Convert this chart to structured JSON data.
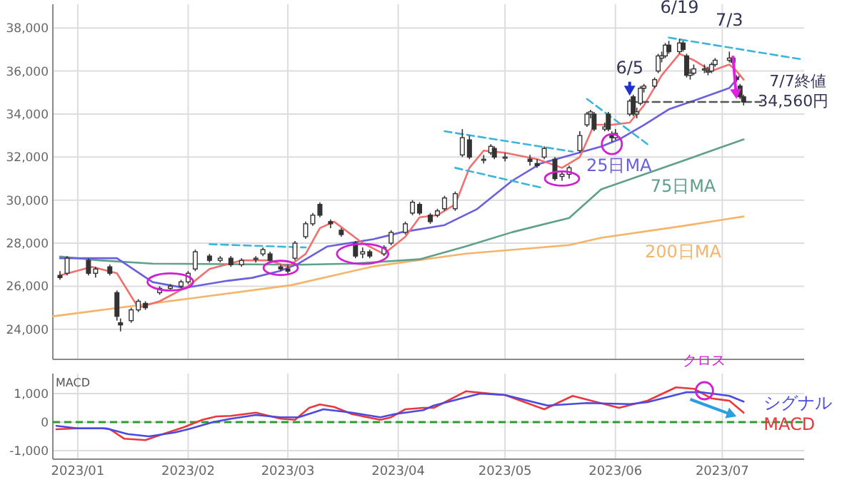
{
  "chart_data": [
    {
      "type": "candlestick",
      "tick_labels": "y",
      "grid": true,
      "xlim": [
        "2022-12-25",
        "2023-07-24"
      ],
      "xticks": [
        {
          "value": "2023-01-01",
          "label": null
        },
        {
          "value": "2023-02-01",
          "label": null
        },
        {
          "value": "2023-03-01",
          "label": null
        },
        {
          "value": "2023-04-01",
          "label": null
        },
        {
          "value": "2023-05-01",
          "label": null
        },
        {
          "value": "2023-06-01",
          "label": null
        },
        {
          "value": "2023-07-01",
          "label": null
        }
      ],
      "ylim": [
        22600,
        39100
      ],
      "yticks": [
        {
          "value": 24000,
          "label": "24,000"
        },
        {
          "value": 26000,
          "label": "26,000"
        },
        {
          "value": 28000,
          "label": "28,000"
        },
        {
          "value": 30000,
          "label": "30,000"
        },
        {
          "value": 32000,
          "label": "32,000"
        },
        {
          "value": 34000,
          "label": "34,000"
        },
        {
          "value": 36000,
          "label": "36,000"
        },
        {
          "value": 38000,
          "label": "38,000"
        }
      ],
      "x": [
        "2022-12-27",
        "2022-12-29",
        "2023-01-04",
        "2023-01-06",
        "2023-01-10",
        "2023-01-12",
        "2023-01-13",
        "2023-01-16",
        "2023-01-18",
        "2023-01-20",
        "2023-01-24",
        "2023-01-27",
        "2023-01-30",
        "2023-02-01",
        "2023-02-03",
        "2023-02-07",
        "2023-02-10",
        "2023-02-13",
        "2023-02-16",
        "2023-02-20",
        "2023-02-22",
        "2023-02-24",
        "2023-02-27",
        "2023-03-01",
        "2023-03-03",
        "2023-03-06",
        "2023-03-08",
        "2023-03-10",
        "2023-03-13",
        "2023-03-16",
        "2023-03-20",
        "2023-03-22",
        "2023-03-24",
        "2023-03-28",
        "2023-03-30",
        "2023-04-03",
        "2023-04-05",
        "2023-04-07",
        "2023-04-10",
        "2023-04-12",
        "2023-04-14",
        "2023-04-17",
        "2023-04-19",
        "2023-04-21",
        "2023-04-25",
        "2023-04-27",
        "2023-04-28",
        "2023-05-01",
        "2023-05-08",
        "2023-05-10",
        "2023-05-12",
        "2023-05-15",
        "2023-05-17",
        "2023-05-19",
        "2023-05-22",
        "2023-05-24",
        "2023-05-25",
        "2023-05-26",
        "2023-05-29",
        "2023-05-30",
        "2023-05-31",
        "2023-06-01",
        "2023-06-05",
        "2023-06-06",
        "2023-06-07",
        "2023-06-08",
        "2023-06-09",
        "2023-06-12",
        "2023-06-13",
        "2023-06-14",
        "2023-06-15",
        "2023-06-16",
        "2023-06-19",
        "2023-06-20",
        "2023-06-21",
        "2023-06-22",
        "2023-06-23",
        "2023-06-26",
        "2023-06-27",
        "2023-06-28",
        "2023-06-29",
        "2023-07-03",
        "2023-07-04",
        "2023-07-05",
        "2023-07-06",
        "2023-07-07"
      ],
      "ohlc": [
        [
          26500,
          26700,
          26300,
          26400
        ],
        [
          26600,
          27400,
          26500,
          27300
        ],
        [
          27200,
          27300,
          26500,
          26600
        ],
        [
          26600,
          26900,
          26400,
          26800
        ],
        [
          26900,
          27000,
          26500,
          26600
        ],
        [
          25700,
          25800,
          24400,
          24600
        ],
        [
          24300,
          24500,
          23900,
          24200
        ],
        [
          24400,
          25000,
          24300,
          24900
        ],
        [
          24900,
          25400,
          24800,
          25300
        ],
        [
          25200,
          25300,
          24900,
          25000
        ],
        [
          25700,
          26000,
          25600,
          25900
        ],
        [
          25900,
          26100,
          25800,
          26000
        ],
        [
          26000,
          26300,
          25900,
          26200
        ],
        [
          26200,
          26700,
          26100,
          26600
        ],
        [
          26800,
          27700,
          26700,
          27600
        ],
        [
          27400,
          27500,
          27100,
          27200
        ],
        [
          27200,
          27400,
          27100,
          27300
        ],
        [
          27300,
          27400,
          26900,
          27000
        ],
        [
          27000,
          27300,
          26900,
          27200
        ],
        [
          27300,
          27400,
          27100,
          27300
        ],
        [
          27500,
          27800,
          27400,
          27700
        ],
        [
          27500,
          27600,
          27100,
          27200
        ],
        [
          26900,
          27000,
          26700,
          26800
        ],
        [
          26800,
          27000,
          26600,
          26700
        ],
        [
          27300,
          28100,
          27200,
          28000
        ],
        [
          28300,
          29000,
          28200,
          28900
        ],
        [
          28900,
          29400,
          28800,
          29300
        ],
        [
          29800,
          29900,
          29200,
          29300
        ],
        [
          29000,
          29100,
          28700,
          28900
        ],
        [
          28600,
          28700,
          28300,
          28400
        ],
        [
          28000,
          28100,
          27300,
          27400
        ],
        [
          27500,
          27800,
          27300,
          27600
        ],
        [
          27600,
          27700,
          27300,
          27400
        ],
        [
          27500,
          27900,
          27400,
          27800
        ],
        [
          28000,
          28600,
          27900,
          28500
        ],
        [
          28500,
          29000,
          28400,
          28900
        ],
        [
          29400,
          30000,
          29300,
          29900
        ],
        [
          29800,
          29900,
          29300,
          29400
        ],
        [
          29300,
          29400,
          28900,
          29000
        ],
        [
          29300,
          29600,
          29200,
          29500
        ],
        [
          29600,
          30200,
          29500,
          30100
        ],
        [
          29600,
          30400,
          29500,
          30300
        ],
        [
          32100,
          33300,
          32000,
          32900
        ],
        [
          32800,
          33000,
          31900,
          32000
        ],
        [
          31900,
          32100,
          31700,
          31900
        ],
        [
          32200,
          32600,
          32100,
          32500
        ],
        [
          32400,
          32500,
          31900,
          32000
        ],
        [
          32000,
          32200,
          31800,
          32000
        ],
        [
          31900,
          32100,
          31600,
          31800
        ],
        [
          31700,
          31900,
          31500,
          31600
        ],
        [
          32000,
          32500,
          31900,
          32400
        ],
        [
          31900,
          32000,
          30900,
          31000
        ],
        [
          31100,
          31300,
          30900,
          31200
        ],
        [
          31200,
          31600,
          31000,
          31500
        ],
        [
          32300,
          33200,
          32200,
          33000
        ],
        [
          33500,
          34100,
          33400,
          34000
        ],
        [
          34000,
          34200,
          33800,
          34100
        ],
        [
          34000,
          34100,
          33200,
          33300
        ],
        [
          33300,
          33600,
          33200,
          33400
        ],
        [
          34000,
          34100,
          33200,
          33300
        ],
        [
          33000,
          33200,
          32700,
          32900
        ],
        [
          32900,
          33300,
          32800,
          33100
        ],
        [
          34000,
          34700,
          33900,
          34600
        ],
        [
          34800,
          34900,
          33900,
          34000
        ],
        [
          34000,
          34300,
          33800,
          34100
        ],
        [
          34500,
          35300,
          34400,
          35200
        ],
        [
          35200,
          35400,
          35000,
          35300
        ],
        [
          35300,
          35700,
          35200,
          35600
        ],
        [
          36000,
          36800,
          35900,
          36700
        ],
        [
          36600,
          36900,
          36400,
          36700
        ],
        [
          36700,
          37300,
          36600,
          37200
        ],
        [
          37200,
          37400,
          36800,
          36900
        ],
        [
          36900,
          37500,
          36800,
          37300
        ],
        [
          37300,
          37400,
          36900,
          37000
        ],
        [
          36700,
          36800,
          35700,
          35800
        ],
        [
          35800,
          36100,
          35600,
          35900
        ],
        [
          35900,
          36300,
          35800,
          36100
        ],
        [
          36100,
          36300,
          35900,
          36100
        ],
        [
          36000,
          36200,
          35800,
          36000
        ],
        [
          36000,
          36400,
          35900,
          36300
        ],
        [
          36300,
          36600,
          36200,
          36500
        ],
        [
          36500,
          36900,
          36400,
          36600
        ],
        [
          36600,
          36700,
          36300,
          36400
        ],
        [
          35700,
          35800,
          35500,
          35600
        ],
        [
          35300,
          35400,
          34700,
          34800
        ],
        [
          34800,
          34900,
          34400,
          34560
        ]
      ],
      "series": [
        {
          "type": "line",
          "color": "#f4b46a",
          "x": [
            "2022-12-25",
            "2023-01-22",
            "2023-03-02",
            "2023-03-25",
            "2023-04-20",
            "2023-05-19",
            "2023-05-28",
            "2023-06-20",
            "2023-07-07"
          ],
          "values": [
            24600,
            25200,
            26050,
            26920,
            27510,
            27910,
            28250,
            28800,
            29240
          ]
        },
        {
          "type": "line",
          "color": "#5fa08a",
          "x": [
            "2022-12-27",
            "2023-01-07",
            "2023-01-22",
            "2023-03-04",
            "2023-03-19",
            "2023-04-07",
            "2023-04-20",
            "2023-05-03",
            "2023-05-19",
            "2023-05-28",
            "2023-06-20",
            "2023-07-07"
          ],
          "values": [
            27380,
            27200,
            27050,
            27000,
            27050,
            27250,
            27850,
            28510,
            29170,
            30500,
            31830,
            32820
          ]
        },
        {
          "type": "line",
          "color": "#6a5fdc",
          "x": [
            "2022-12-27",
            "2023-01-12",
            "2023-01-22",
            "2023-01-31",
            "2023-02-12",
            "2023-02-19",
            "2023-02-27",
            "2023-03-04",
            "2023-03-12",
            "2023-03-25",
            "2023-04-02",
            "2023-04-14",
            "2023-04-23",
            "2023-05-03",
            "2023-05-11",
            "2023-05-28",
            "2023-06-02",
            "2023-06-09",
            "2023-06-16",
            "2023-06-24",
            "2023-07-03",
            "2023-07-06"
          ],
          "values": [
            27300,
            27300,
            26190,
            25920,
            26250,
            26390,
            26720,
            27050,
            27840,
            28180,
            28510,
            28840,
            29570,
            30900,
            31700,
            32490,
            32820,
            33490,
            34220,
            34680,
            35210,
            35800
          ]
        },
        {
          "type": "line",
          "color": "#f07070",
          "x": [
            "2022-12-27",
            "2023-01-05",
            "2023-01-12",
            "2023-01-18",
            "2023-01-24",
            "2023-02-01",
            "2023-02-07",
            "2023-02-16",
            "2023-02-24",
            "2023-03-01",
            "2023-03-06",
            "2023-03-10",
            "2023-03-14",
            "2023-03-22",
            "2023-03-28",
            "2023-04-03",
            "2023-04-07",
            "2023-04-12",
            "2023-04-17",
            "2023-04-21",
            "2023-04-25",
            "2023-05-01",
            "2023-05-10",
            "2023-05-17",
            "2023-05-22",
            "2023-05-26",
            "2023-05-31",
            "2023-06-05",
            "2023-06-09",
            "2023-06-14",
            "2023-06-19",
            "2023-06-23",
            "2023-06-28",
            "2023-07-03",
            "2023-07-05",
            "2023-07-07"
          ],
          "values": [
            26500,
            26900,
            26600,
            25000,
            25300,
            26000,
            26800,
            27200,
            27200,
            26900,
            27500,
            28700,
            29000,
            28000,
            27500,
            28300,
            29200,
            29300,
            29800,
            31500,
            32300,
            32200,
            31900,
            31500,
            32000,
            33500,
            33500,
            33600,
            34400,
            35800,
            36800,
            36500,
            36000,
            36300,
            36000,
            35600
          ]
        },
        {
          "type": "line",
          "color": "#3cb4dc",
          "line_style": "dashed",
          "x": [
            "2023-02-07",
            "2023-03-06"
          ],
          "values": [
            27950,
            27800
          ]
        },
        {
          "type": "line",
          "color": "#3cb4dc",
          "line_style": "dashed",
          "x": [
            "2023-04-14",
            "2023-05-20"
          ],
          "values": [
            33200,
            32250
          ]
        },
        {
          "type": "line",
          "color": "#3cb4dc",
          "line_style": "dashed",
          "x": [
            "2023-04-17",
            "2023-05-12"
          ],
          "values": [
            31500,
            30550
          ]
        },
        {
          "type": "line",
          "color": "#3cb4dc",
          "line_style": "dashed",
          "x": [
            "2023-05-24",
            "2023-06-10"
          ],
          "values": [
            34700,
            32600
          ]
        },
        {
          "type": "line",
          "color": "#3cb4dc",
          "line_style": "dashed",
          "x": [
            "2023-06-16",
            "2023-07-23"
          ],
          "values": [
            37550,
            36550
          ]
        },
        {
          "type": "line",
          "color": "#555555",
          "line_style": "dashed",
          "x": [
            "2023-06-05",
            "2023-07-12"
          ],
          "values": [
            34560,
            34560
          ]
        }
      ],
      "annotations": [
        {
          "text": "6/5",
          "x": "2023-06-05",
          "y": 34700
        },
        {
          "text": "6/19",
          "x": "2023-06-19",
          "y": 37500
        },
        {
          "text": "7/3",
          "x": "2023-07-03",
          "y": 36900
        },
        {
          "text": "7/7終値\n34,560円",
          "x": "2023-07-07",
          "y": 34560
        },
        {
          "text": "25日MA",
          "x": "2023-06-02",
          "y": 32820
        },
        {
          "text": "75日MA",
          "x": "2023-06-20",
          "y": 31830
        },
        {
          "text": "200日MA",
          "x": "2023-06-20",
          "y": 28800
        }
      ]
    },
    {
      "type": "line",
      "title": "MACD",
      "grid": true,
      "xlim": [
        "2022-12-25",
        "2023-07-24"
      ],
      "xticks": [
        {
          "value": "2023-01-01",
          "label": "2023/01"
        },
        {
          "value": "2023-02-01",
          "label": "2023/02"
        },
        {
          "value": "2023-03-01",
          "label": "2023/03"
        },
        {
          "value": "2023-04-01",
          "label": "2023/04"
        },
        {
          "value": "2023-05-01",
          "label": "2023/05"
        },
        {
          "value": "2023-06-01",
          "label": "2023/06"
        },
        {
          "value": "2023-07-01",
          "label": "2023/07"
        }
      ],
      "ylim": [
        -1300,
        1700
      ],
      "yticks": [
        {
          "value": -1000,
          "label": "-1,000"
        },
        0,
        {
          "value": 1000,
          "label": "1,000"
        }
      ],
      "ref_lines": [
        {
          "axis": "y",
          "value": 0,
          "color": "#2a9d2a",
          "line_style": "dashed"
        }
      ],
      "series": [
        {
          "name": "MACD",
          "color": "#e8383d",
          "x": [
            "2022-12-26",
            "2023-01-01",
            "2023-01-08",
            "2023-01-10",
            "2023-01-14",
            "2023-01-20",
            "2023-01-23",
            "2023-01-31",
            "2023-02-05",
            "2023-02-09",
            "2023-02-13",
            "2023-02-20",
            "2023-02-27",
            "2023-03-03",
            "2023-03-07",
            "2023-03-10",
            "2023-03-14",
            "2023-03-19",
            "2023-03-27",
            "2023-03-30",
            "2023-04-03",
            "2023-04-08",
            "2023-04-11",
            "2023-04-20",
            "2023-05-01",
            "2023-05-12",
            "2023-05-20",
            "2023-06-02",
            "2023-06-10",
            "2023-06-18",
            "2023-06-23",
            "2023-06-28",
            "2023-07-03",
            "2023-07-07"
          ],
          "values": [
            -250,
            -220,
            -220,
            -250,
            -580,
            -630,
            -500,
            -170,
            80,
            200,
            220,
            330,
            120,
            80,
            500,
            620,
            530,
            280,
            80,
            170,
            450,
            500,
            500,
            1080,
            950,
            450,
            920,
            500,
            750,
            1220,
            1170,
            830,
            750,
            330
          ]
        },
        {
          "name": "シグナル",
          "color": "#4a4ae0",
          "x": [
            "2022-12-26",
            "2023-01-01",
            "2023-01-09",
            "2023-01-15",
            "2023-01-21",
            "2023-01-28",
            "2023-02-01",
            "2023-02-08",
            "2023-02-13",
            "2023-02-20",
            "2023-02-27",
            "2023-03-04",
            "2023-03-11",
            "2023-03-19",
            "2023-03-27",
            "2023-03-31",
            "2023-04-08",
            "2023-04-11",
            "2023-04-24",
            "2023-05-01",
            "2023-05-13",
            "2023-05-24",
            "2023-06-05",
            "2023-06-10",
            "2023-06-21",
            "2023-06-25",
            "2023-07-03",
            "2023-07-07"
          ],
          "values": [
            -130,
            -220,
            -220,
            -420,
            -500,
            -370,
            -250,
            0,
            120,
            250,
            170,
            170,
            450,
            330,
            170,
            280,
            420,
            580,
            1000,
            950,
            580,
            670,
            630,
            700,
            1050,
            1050,
            920,
            720
          ]
        }
      ],
      "annotations": [
        {
          "text": "クロス",
          "x": "2023-06-26",
          "y": 1100
        }
      ]
    }
  ]
}
